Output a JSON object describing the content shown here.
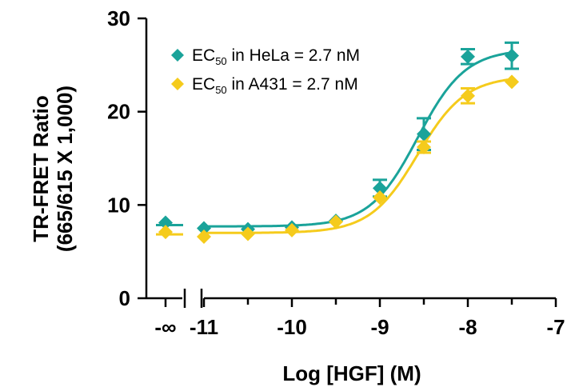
{
  "chart_data": {
    "type": "scatter",
    "xlabel": "Log [HGF] (M)",
    "ylabel": [
      "TR-FRET Ratio",
      "(665/615 X 1,000)"
    ],
    "xlim": [
      -11,
      -7
    ],
    "ylim": [
      0,
      30
    ],
    "x_tick_values": [
      -11,
      -10,
      -9,
      -8,
      -7
    ],
    "x_tick_labels": [
      "-11",
      "-10",
      "-9",
      "-8",
      "-7"
    ],
    "x_break_label": "-∞",
    "y_tick_values": [
      0,
      10,
      20,
      30
    ],
    "y_tick_labels": [
      "0",
      "10",
      "20",
      "30"
    ],
    "grid": false,
    "legend_position": "top-left",
    "series": [
      {
        "name_prefix": "EC",
        "name_sub": "50",
        "name_suffix": " in HeLa = 2.7 nM",
        "color": "#1aa39a",
        "zero_dose_value": 8.1,
        "x": [
          -11,
          -10.5,
          -10,
          -9.5,
          -9,
          -8.5,
          -8,
          -7.5
        ],
        "y": [
          7.5,
          7.4,
          7.6,
          8.3,
          11.8,
          17.6,
          25.9,
          26.0
        ],
        "error": [
          0.2,
          0.2,
          0.2,
          0.2,
          0.9,
          1.7,
          0.8,
          1.4
        ],
        "fit": {
          "bottom": 7.7,
          "top": 26.7,
          "log_ec50": -8.57,
          "hill": 1.6
        }
      },
      {
        "name_prefix": "EC",
        "name_sub": "50",
        "name_suffix": " in A431 = 2.7 nM",
        "color": "#f5cb1c",
        "zero_dose_value": 7.1,
        "x": [
          -11,
          -10.5,
          -10,
          -9.5,
          -9,
          -8.5,
          -8,
          -7.5
        ],
        "y": [
          6.6,
          6.9,
          7.3,
          8.2,
          10.8,
          16.2,
          21.7,
          23.2
        ],
        "error": [
          0.2,
          0.2,
          0.2,
          0.2,
          0.3,
          0.6,
          0.8,
          0.3
        ],
        "fit": {
          "bottom": 7.0,
          "top": 23.8,
          "log_ec50": -8.57,
          "hill": 1.6
        }
      }
    ]
  }
}
